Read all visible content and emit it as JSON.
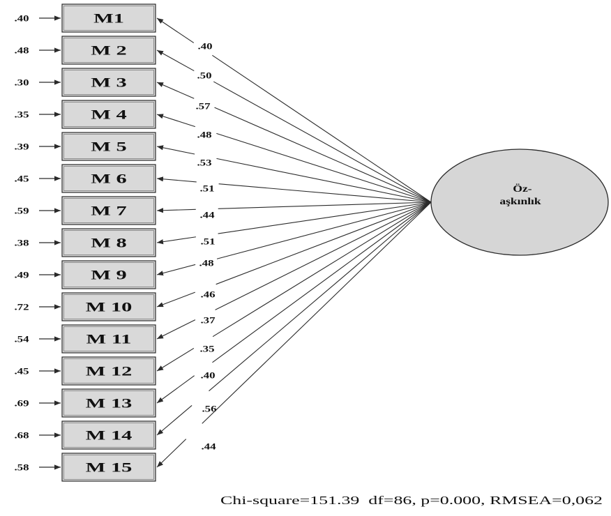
{
  "diagram": {
    "latent": {
      "label_lines": [
        "Öz-",
        "aşkınlık"
      ]
    },
    "indicators": [
      {
        "label": "M1",
        "loading": ".40",
        "error": ".40"
      },
      {
        "label": "M 2",
        "loading": ".50",
        "error": ".48"
      },
      {
        "label": "M 3",
        "loading": ".57",
        "error": ".30"
      },
      {
        "label": "M 4",
        "loading": ".48",
        "error": ".35"
      },
      {
        "label": "M 5",
        "loading": ".53",
        "error": ".39"
      },
      {
        "label": "M 6",
        "loading": ".51",
        "error": ".45"
      },
      {
        "label": "M 7",
        "loading": ".44",
        "error": ".59"
      },
      {
        "label": "M 8",
        "loading": ".51",
        "error": ".38"
      },
      {
        "label": "M 9",
        "loading": ".48",
        "error": ".49"
      },
      {
        "label": "M 10",
        "loading": ".46",
        "error": ".72"
      },
      {
        "label": "M 11",
        "loading": ".37",
        "error": ".54"
      },
      {
        "label": "M 12",
        "loading": ".35",
        "error": ".45"
      },
      {
        "label": "M 13",
        "loading": ".40",
        "error": ".69"
      },
      {
        "label": "M 14",
        "loading": ".56",
        "error": ".68"
      },
      {
        "label": "M 15",
        "loading": ".44",
        "error": ".58"
      }
    ],
    "fit_statistics": "Chi-square=151.39  df=86, p=0.000, RMSEA=0,062"
  },
  "colors": {
    "box_fill": "#d9d9d9",
    "ellipse_fill": "#d6d6d6",
    "line": "#2a2a2a",
    "box_inner_frame": "#8c8c8c"
  }
}
